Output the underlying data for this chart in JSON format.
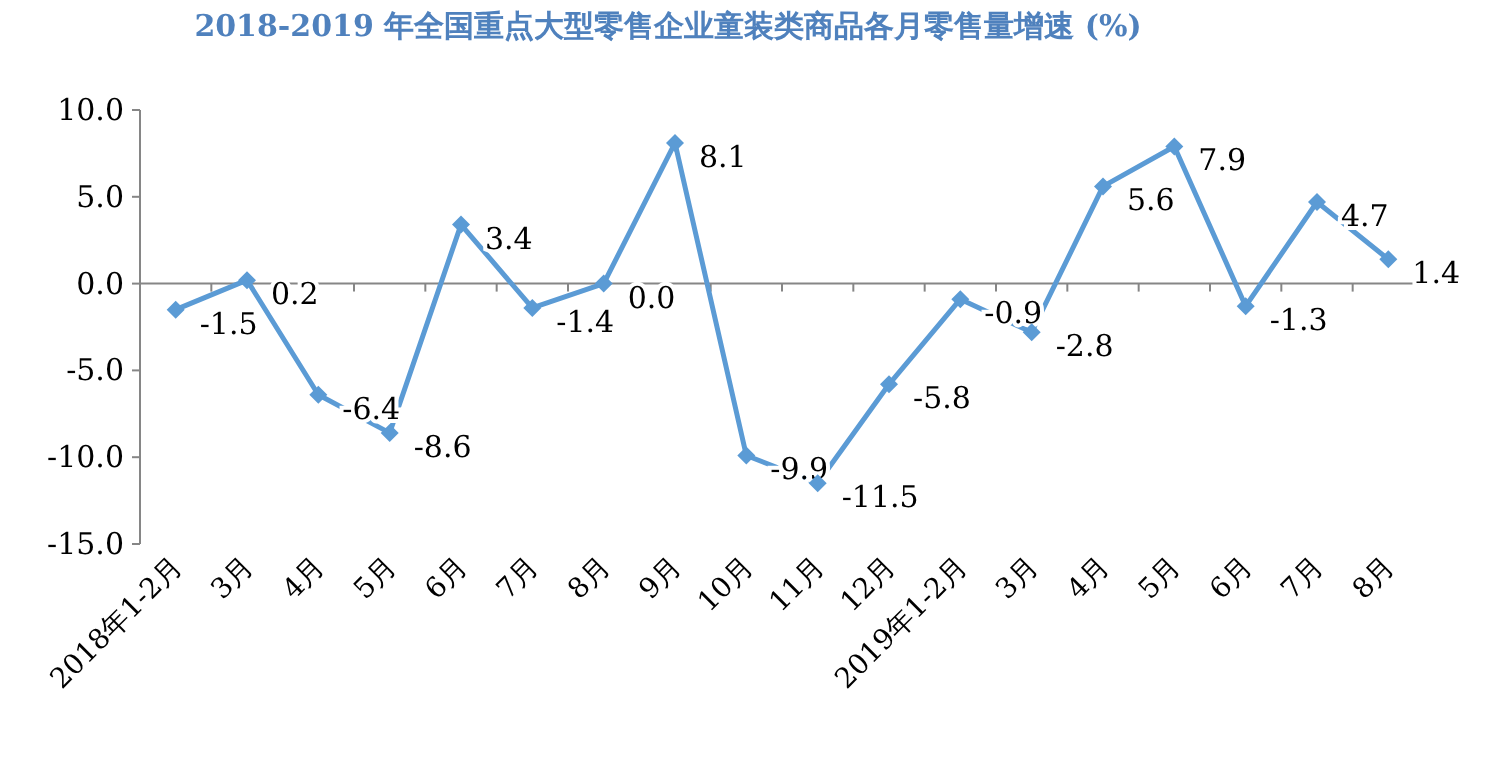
{
  "chart_data": {
    "type": "line",
    "title": "2018-2019 年全国重点大型零售企业童装类商品各月零售量增速 (%)",
    "categories": [
      "2018年1-2月",
      "3月",
      "4月",
      "5月",
      "6月",
      "7月",
      "8月",
      "9月",
      "10月",
      "11月",
      "12月",
      "2019年1-2月",
      "3月",
      "4月",
      "5月",
      "6月",
      "7月",
      "8月"
    ],
    "series": [
      {
        "color": "#5b9bd5",
        "values": [
          -1.5,
          0.2,
          -6.4,
          -8.6,
          3.4,
          -1.4,
          0.0,
          8.1,
          -9.9,
          -11.5,
          -5.8,
          -0.9,
          -2.8,
          5.6,
          7.9,
          -1.3,
          4.7,
          1.4
        ],
        "value_labels": [
          "-1.5",
          "0.2",
          "-6.4",
          "-8.6",
          "3.4",
          "-1.4",
          "0.0",
          "8.1",
          "-9.9",
          "-11.5",
          "-5.8",
          "-0.9",
          "-2.8",
          "5.6",
          "7.9",
          "-1.3",
          "4.7",
          "1.4"
        ]
      }
    ],
    "ylim": [
      -15,
      10
    ],
    "yticks": [
      {
        "value": -15,
        "label": "-15.0"
      },
      {
        "value": -10,
        "label": "-10.0"
      },
      {
        "value": -5,
        "label": "-5.0"
      },
      {
        "value": 0,
        "label": "0.0"
      },
      {
        "value": 5,
        "label": "5.0"
      },
      {
        "value": 10,
        "label": "10.0"
      }
    ],
    "marker": "diamond",
    "line_style": "solid"
  }
}
